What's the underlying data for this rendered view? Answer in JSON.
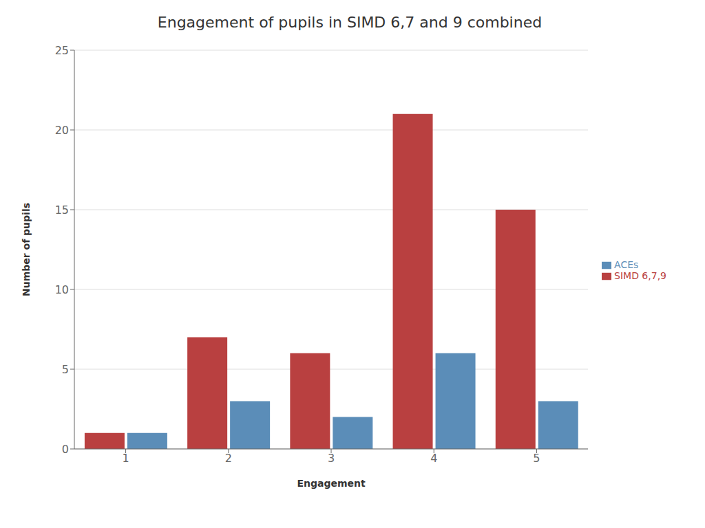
{
  "chart_data": {
    "type": "bar",
    "title": "Engagement of pupils in SIMD 6,7 and 9 combined",
    "xlabel": "Engagement",
    "ylabel": "Number of pupils",
    "categories": [
      1,
      2,
      3,
      4,
      5
    ],
    "series": [
      {
        "name": "SIMD 6,7,9",
        "color": "#B94040",
        "values": [
          1,
          7,
          6,
          21,
          15
        ]
      },
      {
        "name": "ACEs",
        "color": "#5B8DB8",
        "values": [
          1,
          3,
          2,
          6,
          3
        ]
      }
    ],
    "ylim": [
      0,
      25
    ],
    "yticks": [
      0,
      5,
      10,
      15,
      20,
      25
    ],
    "grid": true,
    "legend": "right"
  }
}
